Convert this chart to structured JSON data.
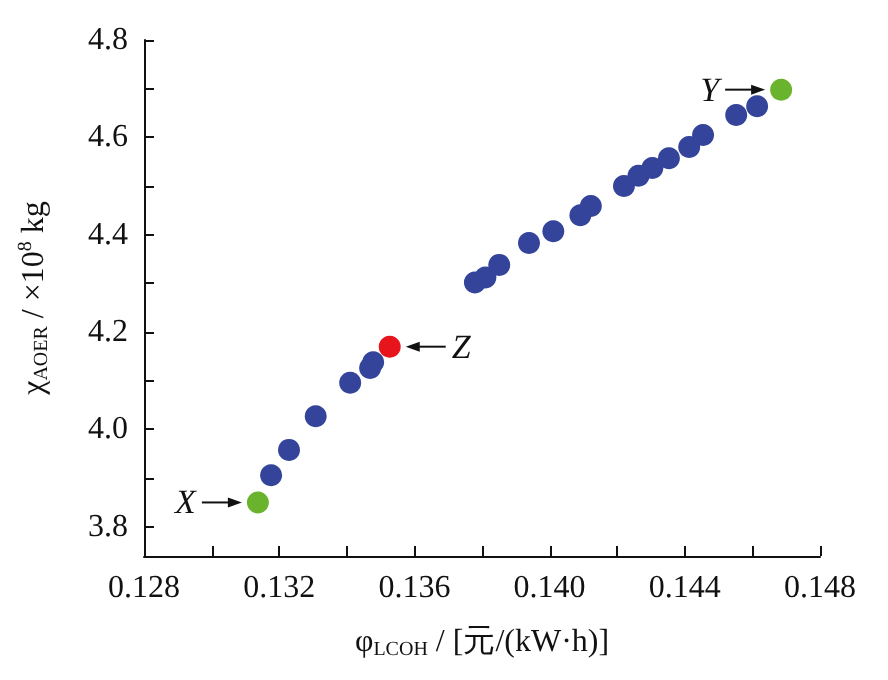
{
  "chart_data": {
    "type": "scatter",
    "xlabel": "φ$_{LCOH}$ / [元/(kW·h)]",
    "ylabel": "χ$_{AOER}$ / ×10$^{8}$ kg",
    "series": [
      {
        "color": "#33449a",
        "x": [
          0.13176,
          0.13229,
          0.13308,
          0.1341,
          0.13469,
          0.13478,
          0.13779,
          0.1381,
          0.13851,
          0.13939,
          0.14011,
          0.14091,
          0.14122,
          0.1422,
          0.14263,
          0.14304,
          0.14353,
          0.14413,
          0.14454,
          0.14552,
          0.14614
        ],
        "values": [
          3.906,
          3.958,
          4.027,
          4.096,
          4.126,
          4.138,
          4.302,
          4.312,
          4.338,
          4.383,
          4.407,
          4.44,
          4.459,
          4.5,
          4.521,
          4.537,
          4.557,
          4.58,
          4.605,
          4.646,
          4.664
        ]
      },
      {
        "color": "#6ab42d",
        "x": [
          0.13137,
          0.14685
        ],
        "values": [
          3.85,
          4.698
        ]
      },
      {
        "color": "#e8141c",
        "x": [
          0.13527
        ],
        "values": [
          4.17
        ]
      }
    ],
    "annotations": [
      {
        "text": "X",
        "x": 0.13137,
        "y": 3.85
      },
      {
        "text": "Y",
        "x": 0.14685,
        "y": 4.698
      },
      {
        "text": "Z",
        "x": 0.13527,
        "y": 4.17
      }
    ],
    "xlim": [
      0.128,
      0.148
    ],
    "xticks": [
      0.128,
      {
        "value": 0.13,
        "label": null
      },
      0.132,
      {
        "value": 0.134,
        "label": null
      },
      0.136,
      {
        "value": 0.138,
        "label": null
      },
      {
        "value": 0.14,
        "label": "0.140"
      },
      {
        "value": 0.142,
        "label": null
      },
      0.144,
      {
        "value": 0.146,
        "label": null
      },
      0.148
    ],
    "ylim": [
      3.74,
      4.8
    ],
    "yticks": [
      3.8,
      {
        "value": 3.9,
        "label": null
      },
      {
        "value": 4,
        "label": "4.0"
      },
      {
        "value": 4.1,
        "label": null
      },
      4.2,
      {
        "value": 4.3,
        "label": null
      },
      4.4,
      {
        "value": 4.5,
        "label": null
      },
      4.6,
      {
        "value": 4.7,
        "label": null
      },
      4.8
    ],
    "grid": false,
    "marker": "circle"
  }
}
